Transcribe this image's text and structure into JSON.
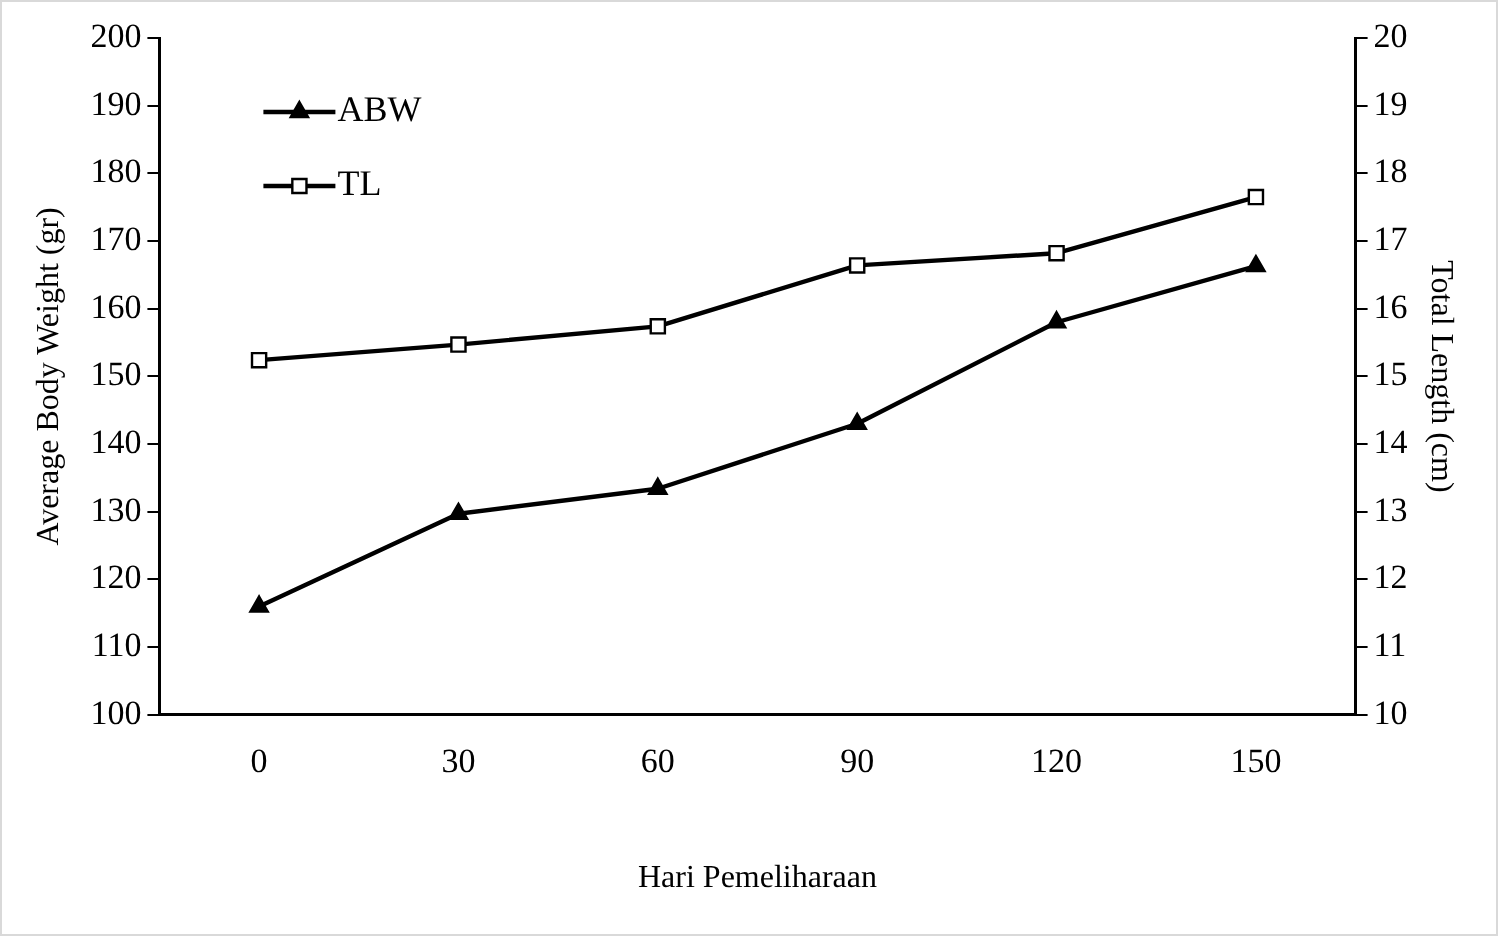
{
  "chart_data": {
    "type": "line",
    "xlabel": "Hari Pemeliharaan",
    "ylabel": "Average Body Weight (gr)",
    "y2label": "Total Length (cm)",
    "categories": [
      "0",
      "30",
      "60",
      "90",
      "120",
      "150"
    ],
    "series": [
      {
        "name": "ABW",
        "color": "#000000",
        "marker": "triangle",
        "values": [
          116,
          129.7,
          133.4,
          143,
          158,
          166.3
        ]
      },
      {
        "name": "TL",
        "color": "#000000",
        "marker": "square",
        "axis": "y2",
        "values": [
          15.24,
          15.47,
          15.74,
          16.64,
          16.82,
          17.65
        ]
      }
    ],
    "ylim": [
      100,
      200
    ],
    "yticks": [
      100,
      110,
      120,
      130,
      140,
      150,
      160,
      170,
      180,
      190,
      200
    ],
    "y2lim": [
      10,
      20
    ],
    "y2ticks": [
      10,
      11,
      12,
      13,
      14,
      15,
      16,
      17,
      18,
      19,
      20
    ],
    "grid": false,
    "legend": "top left",
    "line_style": "solid"
  }
}
